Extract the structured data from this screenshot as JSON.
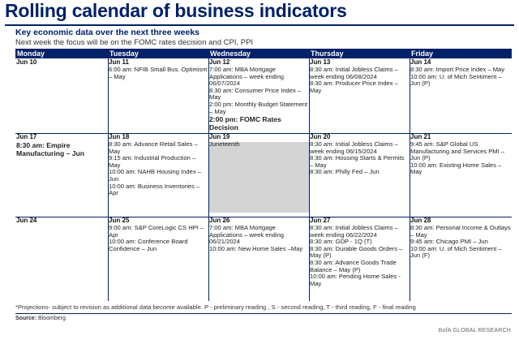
{
  "title": "Rolling calendar of business indicators",
  "subtitle": "Key economic data over the next three weeks",
  "subtitle2": "Next week the focus will be on the FOMC rates decision and CPI, PPI",
  "days": [
    "Monday",
    "Tuesday",
    "Wednesday",
    "Thursday",
    "Friday"
  ],
  "weeks": [
    {
      "cells": [
        {
          "date": "Jun 10",
          "events": []
        },
        {
          "date": "Jun 11",
          "events": [
            "6:00 am: NFIB Small Bus. Optimism – May"
          ]
        },
        {
          "date": "Jun 12",
          "events": [
            "7:00 am: MBA Mortgage Applications – week ending 06/07/2024",
            "8:30 am: Consumer Price Index – May",
            "2:00 pm: Monthly Budget Statement – May"
          ],
          "bold_event": "2:00 pm: FOMC Rates Decision"
        },
        {
          "date": "Jun 13",
          "events": [
            "8:30 am: Initial Jobless Claims – week ending 06/08/2024",
            "8:30 am: Producer Price Index – May"
          ]
        },
        {
          "date": "Jun 14",
          "events": [
            "8:30 am: Import Price Index – May",
            "10:00 am: U. of Mich Sentiment – Jun (P)"
          ]
        }
      ]
    },
    {
      "cells": [
        {
          "date": "Jun 17",
          "events": [],
          "bold_event": "8:30 am: Empire Manufacturing – Jun"
        },
        {
          "date": "Jun 18",
          "events": [
            "8:30 am: Advance Retail Sales – May",
            "9:15 am: Industrial Production – May",
            "10:00 am: NAHB Housing Index – Jun",
            "10:00 am: Business Inventories – Apr"
          ]
        },
        {
          "date": "Jun 19",
          "events": [
            "Juneteenth"
          ],
          "holiday": true
        },
        {
          "date": "Jun 20",
          "events": [
            "8:30 am: Initial Jobless Claims – week ending 06/15/2024",
            "8:30 am: Housing Starts & Permits – May",
            "8:30 am: Philly Fed – Jun"
          ]
        },
        {
          "date": "Jun 21",
          "events": [
            "9:45 am: S&P Global US Manufacturing and Services PMI – Jun (P)",
            "10:00 am: Existing Home Sales – May"
          ]
        }
      ]
    },
    {
      "cells": [
        {
          "date": "Jun 24",
          "events": []
        },
        {
          "date": "Jun 25",
          "events": [
            "9:00 am: S&P CoreLogic CS HPI – Apr",
            "10:00 am: Conference Board Confidence – Jun"
          ]
        },
        {
          "date": "Jun 26",
          "events": [
            "7:00 am: MBA Mortgage Applications – week ending 06/21/2024",
            "10:00 am: New Home Sales –May"
          ]
        },
        {
          "date": "Jun 27",
          "events": [
            "8:30 am: Initial Jobless Claims – week ending 06/22/2024",
            "8:30 am: GDP - 1Q (T)",
            "8:30 am: Durable Goods Orders – May (P)",
            "8:30 am: Advance Goods Trade Balance – May (P)",
            "10:00 am: Pending Home Sales - May"
          ]
        },
        {
          "date": "Jun 28",
          "events": [
            "8:30 am: Personal Income & Outlays – May",
            "9:45 am: Chicago PMI – Jun",
            "10:00 am: U. of Mich Sentiment – Jun (F)"
          ]
        }
      ]
    }
  ],
  "footnote": "*Projections- subject to revision as additional data become available. P - preliminary reading , S -  second reading, T - third reading, F - final reading",
  "source_label": "Source:",
  "source_value": "Bloomberg",
  "brand": "BofA GLOBAL RESEARCH",
  "colors": {
    "navy": "#012169",
    "holiday_shade": "#d4d4d4"
  }
}
